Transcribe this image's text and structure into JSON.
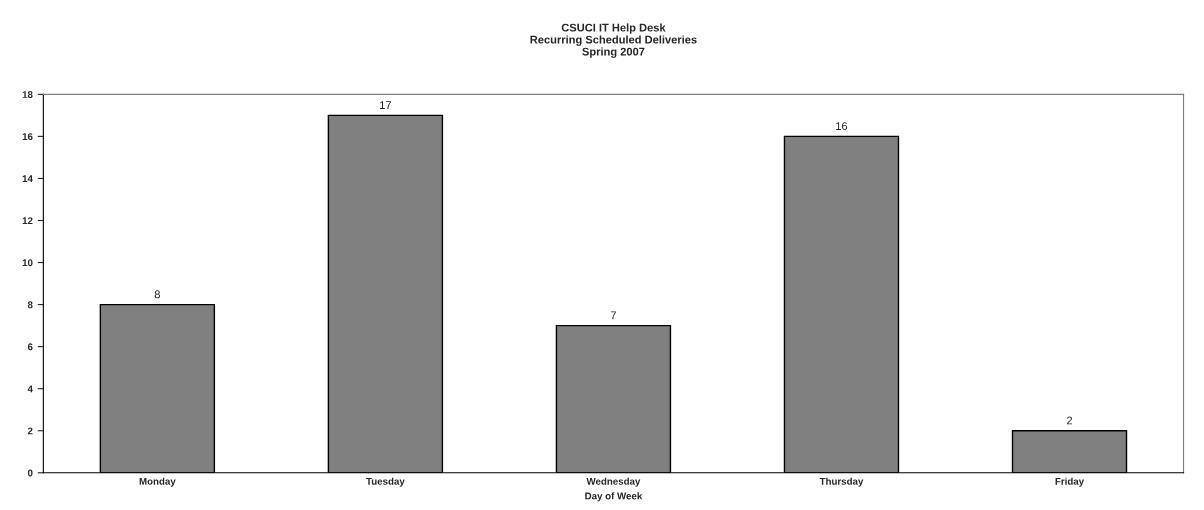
{
  "chart_data": {
    "type": "bar",
    "title": "CSUCI IT Help Desk\nRecurring Scheduled Deliveries\nSpring 2007",
    "xlabel": "Day of Week",
    "categories": [
      "Monday",
      "Tuesday",
      "Wednesday",
      "Thursday",
      "Friday"
    ],
    "values": [
      8,
      17,
      7,
      16,
      2
    ],
    "color": "#808080",
    "ylim": [
      0,
      18
    ],
    "yticks": [
      0,
      2,
      4,
      6,
      8,
      10,
      12,
      14,
      16,
      18
    ],
    "data_labels": true,
    "grid": false,
    "legend": false
  }
}
